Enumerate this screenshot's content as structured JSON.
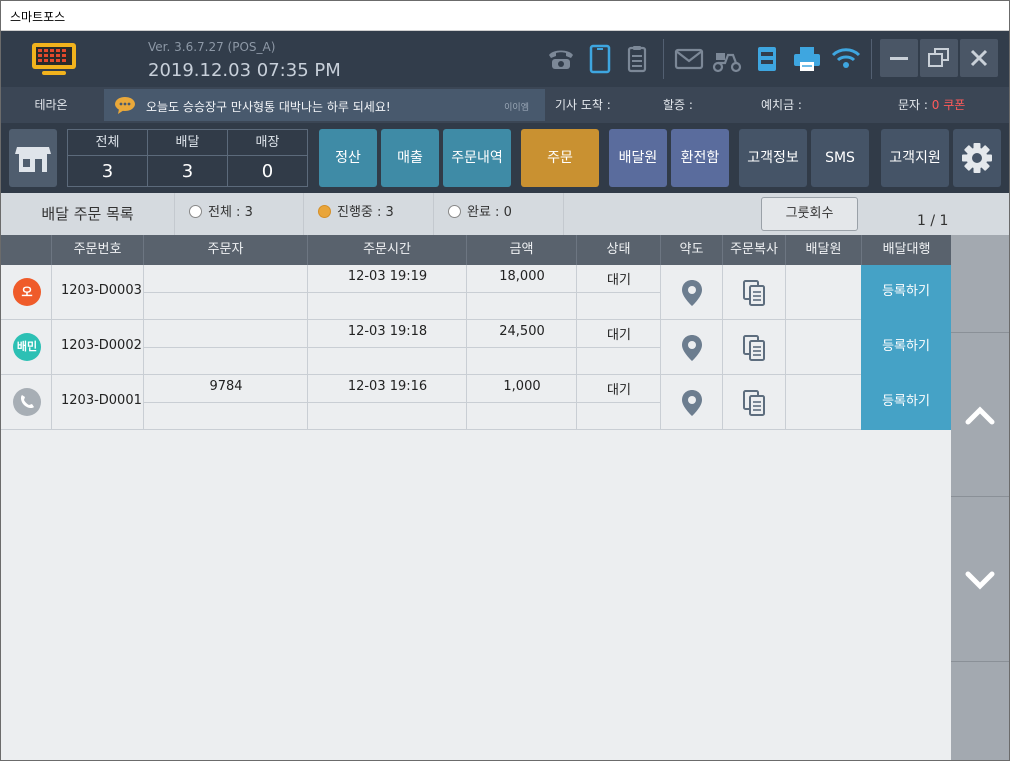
{
  "window": {
    "title": "스마트포스"
  },
  "header": {
    "version": "Ver. 3.6.7.27 (POS_A)",
    "datetime": "2019.12.03 07:35 PM",
    "icons": [
      "logo-icon",
      "phone-icon",
      "tablet-icon",
      "clipboard-icon",
      "mail-icon",
      "scooter-icon",
      "drawer-icon",
      "printer-icon",
      "wifi-icon",
      "minimize-icon",
      "restore-icon",
      "close-icon"
    ]
  },
  "info": {
    "store": "테라온",
    "marquee": "오늘도 승승장구 만사형통 대박나는 하루 되세요!",
    "marquee_source": "이이엠",
    "rider_arrival": "기사 도착 :",
    "surcharge": "할증 :",
    "deposit": "예치금 :",
    "sms_label": "문자 :",
    "sms_value": "0 쿠폰"
  },
  "counts": [
    {
      "label": "전체",
      "value": "3"
    },
    {
      "label": "배달",
      "value": "3"
    },
    {
      "label": "매장",
      "value": "0"
    }
  ],
  "toolbar": {
    "settle": "정산",
    "sales": "매출",
    "order_history": "주문내역",
    "order": "주문",
    "rider": "배달원",
    "change_box": "환전함",
    "customer_info": "고객정보",
    "sms": "SMS",
    "support": "고객지원"
  },
  "filter": {
    "title": "배달 주문 목록",
    "all": "전체 : 3",
    "progress": "진행중 : 3",
    "done": "완료 : 0",
    "selected": "progress",
    "group_button": "그룻회수",
    "page": "1 / 1"
  },
  "table": {
    "headers": [
      "주문번호",
      "주문자",
      "주문시간",
      "금액",
      "상태",
      "약도",
      "주문복사",
      "배달원",
      "배달대행"
    ],
    "rows": [
      {
        "channel": "오",
        "channel_color": "#ef5b2a",
        "order_no": "1203-D0003",
        "customer": "",
        "time": "12-03 19:19",
        "amount": "18,000",
        "status": "대기",
        "action": "등록하기"
      },
      {
        "channel": "배민",
        "channel_color": "#2cc0b4",
        "order_no": "1203-D0002",
        "customer": "",
        "time": "12-03 19:18",
        "amount": "24,500",
        "status": "대기",
        "action": "등록하기"
      },
      {
        "channel": "phone",
        "channel_color": "#a7aeb5",
        "order_no": "1203-D0001",
        "customer": "9784",
        "time": "12-03 19:16",
        "amount": "1,000",
        "status": "대기",
        "action": "등록하기"
      }
    ]
  },
  "colors": {
    "accent_teal": "#3f8ba6",
    "accent_orange": "#c99131",
    "register_blue": "#45a2c6",
    "header_dark": "#323d4b"
  }
}
